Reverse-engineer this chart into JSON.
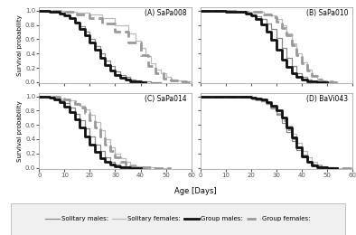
{
  "curves": {
    "A": {
      "solitary_males": {
        "x": [
          0,
          2,
          4,
          6,
          8,
          10,
          12,
          14,
          16,
          18,
          20,
          22,
          24,
          26,
          28,
          30,
          32,
          34,
          36,
          38,
          40,
          42,
          44,
          46,
          48
        ],
        "y": [
          1.0,
          1.0,
          0.99,
          0.98,
          0.97,
          0.94,
          0.9,
          0.85,
          0.78,
          0.7,
          0.6,
          0.5,
          0.4,
          0.3,
          0.22,
          0.15,
          0.1,
          0.07,
          0.04,
          0.02,
          0.01,
          0.005,
          0.002,
          0.001,
          0.0
        ]
      },
      "solitary_females": {
        "x": [
          0,
          5,
          10,
          15,
          20,
          25,
          30,
          35,
          38,
          40,
          42,
          44,
          46,
          48,
          50,
          52,
          54,
          56,
          58,
          60
        ],
        "y": [
          1.0,
          1.0,
          0.99,
          0.97,
          0.94,
          0.89,
          0.8,
          0.68,
          0.58,
          0.48,
          0.36,
          0.26,
          0.18,
          0.12,
          0.07,
          0.04,
          0.02,
          0.01,
          0.005,
          0.0
        ]
      },
      "group_males": {
        "x": [
          0,
          2,
          4,
          6,
          8,
          10,
          12,
          14,
          16,
          18,
          20,
          22,
          24,
          26,
          28,
          30,
          32,
          34,
          36,
          38,
          40,
          42
        ],
        "y": [
          1.0,
          1.0,
          0.99,
          0.98,
          0.96,
          0.93,
          0.89,
          0.83,
          0.75,
          0.66,
          0.56,
          0.45,
          0.34,
          0.24,
          0.16,
          0.1,
          0.06,
          0.03,
          0.015,
          0.007,
          0.002,
          0.0
        ]
      },
      "group_females": {
        "x": [
          0,
          5,
          10,
          15,
          20,
          25,
          30,
          35,
          40,
          43,
          46,
          49,
          52,
          55,
          58,
          60
        ],
        "y": [
          1.0,
          1.0,
          0.98,
          0.95,
          0.9,
          0.82,
          0.7,
          0.55,
          0.38,
          0.22,
          0.12,
          0.05,
          0.02,
          0.008,
          0.002,
          0.0
        ]
      }
    },
    "B": {
      "solitary_males": {
        "x": [
          0,
          5,
          10,
          15,
          18,
          20,
          22,
          24,
          26,
          28,
          30,
          32,
          34,
          36,
          38,
          40,
          42,
          44,
          46,
          48,
          50,
          52
        ],
        "y": [
          1.0,
          1.0,
          0.99,
          0.98,
          0.97,
          0.95,
          0.92,
          0.88,
          0.82,
          0.74,
          0.62,
          0.48,
          0.34,
          0.22,
          0.13,
          0.07,
          0.03,
          0.015,
          0.007,
          0.003,
          0.001,
          0.0
        ]
      },
      "solitary_females": {
        "x": [
          0,
          5,
          10,
          15,
          20,
          25,
          28,
          30,
          32,
          34,
          36,
          38,
          40,
          42,
          44,
          46,
          48,
          50,
          52,
          54
        ],
        "y": [
          1.0,
          1.0,
          1.0,
          0.99,
          0.98,
          0.96,
          0.93,
          0.88,
          0.8,
          0.68,
          0.54,
          0.4,
          0.28,
          0.18,
          0.1,
          0.05,
          0.02,
          0.008,
          0.003,
          0.0
        ]
      },
      "group_males": {
        "x": [
          0,
          5,
          10,
          15,
          18,
          20,
          22,
          24,
          26,
          28,
          30,
          32,
          34,
          36,
          38,
          40,
          42,
          44,
          46,
          48,
          50
        ],
        "y": [
          1.0,
          1.0,
          0.99,
          0.98,
          0.96,
          0.93,
          0.88,
          0.81,
          0.71,
          0.59,
          0.45,
          0.32,
          0.21,
          0.12,
          0.07,
          0.03,
          0.012,
          0.005,
          0.002,
          0.001,
          0.0
        ]
      },
      "group_females": {
        "x": [
          0,
          5,
          10,
          15,
          20,
          25,
          28,
          30,
          32,
          34,
          36,
          38,
          40,
          42,
          44,
          46,
          48,
          50,
          52,
          54
        ],
        "y": [
          1.0,
          1.0,
          1.0,
          0.99,
          0.98,
          0.95,
          0.91,
          0.85,
          0.76,
          0.65,
          0.52,
          0.38,
          0.26,
          0.16,
          0.09,
          0.04,
          0.015,
          0.005,
          0.001,
          0.0
        ]
      }
    },
    "C": {
      "solitary_males": {
        "x": [
          0,
          2,
          4,
          6,
          8,
          10,
          12,
          14,
          16,
          18,
          20,
          22,
          24,
          26,
          28,
          30,
          32,
          34,
          36,
          38,
          40,
          42
        ],
        "y": [
          1.0,
          1.0,
          0.99,
          0.97,
          0.94,
          0.9,
          0.84,
          0.76,
          0.66,
          0.55,
          0.44,
          0.33,
          0.23,
          0.15,
          0.09,
          0.05,
          0.025,
          0.01,
          0.005,
          0.002,
          0.001,
          0.0
        ]
      },
      "solitary_females": {
        "x": [
          0,
          2,
          5,
          8,
          10,
          12,
          14,
          16,
          18,
          20,
          22,
          24,
          26,
          28,
          30,
          32,
          34,
          36,
          38,
          40,
          42,
          44,
          46,
          48,
          50,
          52
        ],
        "y": [
          1.0,
          1.0,
          0.99,
          0.97,
          0.96,
          0.94,
          0.91,
          0.87,
          0.82,
          0.74,
          0.64,
          0.52,
          0.4,
          0.29,
          0.2,
          0.13,
          0.08,
          0.05,
          0.025,
          0.01,
          0.005,
          0.002,
          0.001,
          0.0,
          0.0,
          0.0
        ]
      },
      "group_males": {
        "x": [
          0,
          2,
          4,
          6,
          8,
          10,
          12,
          14,
          16,
          18,
          20,
          22,
          24,
          26,
          28,
          30,
          32,
          34,
          36,
          38,
          40
        ],
        "y": [
          1.0,
          1.0,
          0.98,
          0.96,
          0.92,
          0.86,
          0.78,
          0.68,
          0.56,
          0.44,
          0.32,
          0.22,
          0.14,
          0.08,
          0.04,
          0.02,
          0.01,
          0.004,
          0.001,
          0.0,
          0.0
        ]
      },
      "group_females": {
        "x": [
          0,
          2,
          5,
          8,
          10,
          12,
          14,
          16,
          18,
          20,
          22,
          24,
          26,
          28,
          30,
          32,
          34,
          36,
          38,
          40,
          42,
          44,
          46,
          48,
          50,
          52
        ],
        "y": [
          1.0,
          1.0,
          0.99,
          0.97,
          0.95,
          0.93,
          0.89,
          0.84,
          0.77,
          0.67,
          0.56,
          0.44,
          0.33,
          0.23,
          0.15,
          0.09,
          0.05,
          0.025,
          0.01,
          0.005,
          0.002,
          0.001,
          0.0,
          0.0,
          0.0,
          0.0
        ]
      }
    },
    "D": {
      "solitary_males": {
        "x": [
          0,
          5,
          10,
          15,
          20,
          22,
          24,
          26,
          28,
          30,
          32,
          34,
          36,
          38,
          40,
          42,
          44,
          46,
          48,
          50,
          52,
          54
        ],
        "y": [
          1.0,
          1.0,
          0.99,
          0.99,
          0.97,
          0.95,
          0.93,
          0.89,
          0.83,
          0.74,
          0.63,
          0.5,
          0.37,
          0.25,
          0.15,
          0.08,
          0.04,
          0.015,
          0.006,
          0.002,
          0.001,
          0.0
        ]
      },
      "solitary_females": {
        "x": [
          0,
          5,
          10,
          15,
          20,
          22,
          24,
          26,
          28,
          30,
          32,
          34,
          36,
          38,
          40,
          42,
          44,
          46,
          48,
          50,
          52,
          54,
          56,
          58,
          60
        ],
        "y": [
          1.0,
          1.0,
          1.0,
          0.99,
          0.97,
          0.96,
          0.94,
          0.91,
          0.86,
          0.79,
          0.7,
          0.59,
          0.47,
          0.35,
          0.24,
          0.15,
          0.08,
          0.04,
          0.015,
          0.006,
          0.002,
          0.001,
          0.0,
          0.0,
          0.0
        ]
      },
      "group_males": {
        "x": [
          0,
          5,
          10,
          15,
          20,
          22,
          24,
          26,
          28,
          30,
          32,
          34,
          36,
          38,
          40,
          42,
          44,
          46,
          48,
          50,
          52,
          54
        ],
        "y": [
          1.0,
          1.0,
          1.0,
          0.99,
          0.98,
          0.97,
          0.95,
          0.92,
          0.87,
          0.8,
          0.7,
          0.57,
          0.43,
          0.28,
          0.16,
          0.08,
          0.03,
          0.01,
          0.004,
          0.001,
          0.0,
          0.0
        ]
      },
      "group_females": {
        "x": [
          0,
          5,
          10,
          15,
          20,
          22,
          24,
          26,
          28,
          30,
          32,
          34,
          36,
          38,
          40,
          42,
          44,
          46,
          48,
          50,
          52,
          54,
          56,
          58,
          60
        ],
        "y": [
          1.0,
          1.0,
          1.0,
          0.99,
          0.97,
          0.96,
          0.94,
          0.9,
          0.84,
          0.76,
          0.66,
          0.54,
          0.41,
          0.28,
          0.17,
          0.09,
          0.04,
          0.015,
          0.005,
          0.001,
          0.0,
          0.0,
          0.0,
          0.0,
          0.0
        ]
      }
    }
  },
  "xlim": [
    0,
    60
  ],
  "ylim": [
    -0.02,
    1.05
  ],
  "xticks": [
    0,
    10,
    20,
    30,
    40,
    50,
    60
  ],
  "yticks": [
    0.0,
    0.2,
    0.4,
    0.6,
    0.8,
    1.0
  ],
  "xlabel": "Age [Days]",
  "ylabel": "Survival probability",
  "panel_labels": [
    "(A) SaPa008",
    "(B) SaPa010",
    "(C) SaPa014",
    "(D) BaVi043"
  ],
  "colors": {
    "solitary_males": "#888888",
    "solitary_females": "#bbbbbb",
    "group_males": "#111111",
    "group_females": "#999999"
  },
  "linewidths": {
    "solitary_males": 0.9,
    "solitary_females": 0.9,
    "group_males": 2.0,
    "group_females": 2.0
  },
  "linestyles": {
    "solitary_males": "solid",
    "solitary_females": "solid",
    "group_males": "solid",
    "group_females": "dashed"
  },
  "legend": {
    "solitary_males_label": "Solitary males:",
    "solitary_females_label": "Solitary females:",
    "group_males_label": "Group males:",
    "group_females_label": "Group females:"
  }
}
